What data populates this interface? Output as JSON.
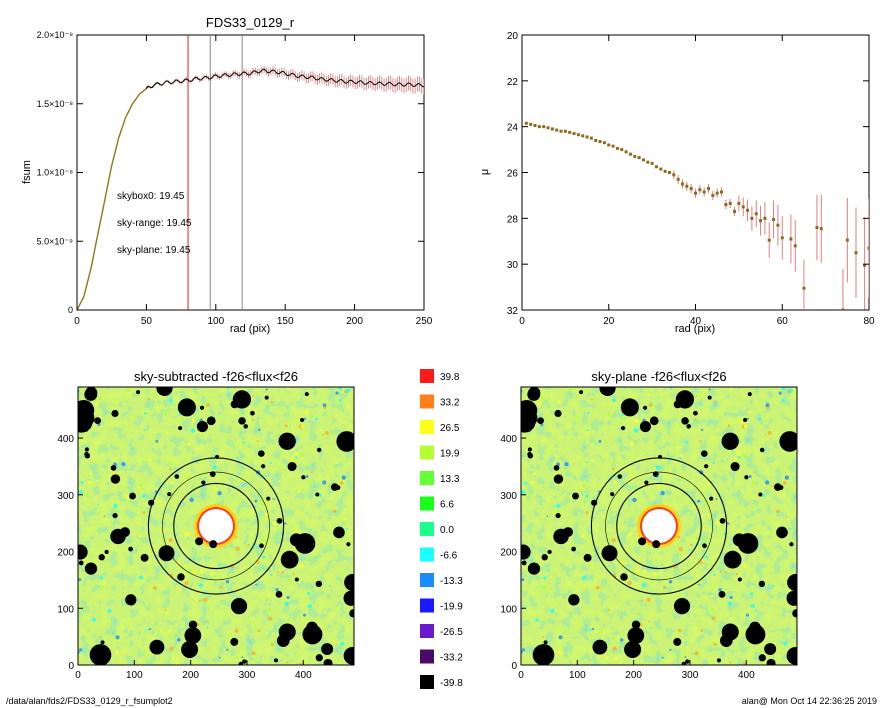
{
  "colors": {
    "growth_black": "#000000",
    "growth_red": "#e02020",
    "growth_green": "#22cc22",
    "growth_olive": "#8a7a1a",
    "errorbar": "#e07070",
    "mag_point": "#8b6a1e"
  },
  "footer": {
    "path": "/data/alan/fds2/FDS33_0129_r_fsumplot2",
    "stamp": "alan@  Mon Oct 14 22:36:25 2019"
  },
  "chart_data": [
    {
      "type": "line",
      "title": "FDS33_0129_r",
      "xlabel": "rad (pix)",
      "ylabel": "fsum",
      "xlim": [
        0,
        250
      ],
      "ylim": [
        0,
        2e-08
      ],
      "xticks": [
        "0",
        "50",
        "100",
        "150",
        "200",
        "250"
      ],
      "yticks": [
        "0",
        "5.0×10⁻⁹",
        "1.0×10⁻⁸",
        "1.5×10⁻⁸",
        "2.0×10⁻⁸"
      ],
      "vlines": [
        {
          "x": 80,
          "color": "#e02020"
        },
        {
          "x": 96,
          "color": "#888888"
        },
        {
          "x": 119,
          "color": "#888888"
        }
      ],
      "annotations": [
        {
          "label": "skybox0:",
          "value": "19.45",
          "color": "#000000"
        },
        {
          "label": "sky-range:",
          "value": "19.45",
          "color": "#e02020"
        },
        {
          "label": "sky-plane:",
          "value": "19.45",
          "color": "#22cc22"
        }
      ],
      "series_curve": {
        "x": [
          0,
          5,
          10,
          15,
          20,
          25,
          30,
          35,
          40,
          45,
          50,
          55,
          60,
          65,
          70,
          75,
          80,
          85,
          90,
          95,
          100,
          105,
          110,
          115,
          120,
          125,
          130,
          135,
          140,
          145,
          150,
          155,
          160,
          165,
          170,
          175,
          180,
          185,
          190,
          195,
          200,
          205,
          210,
          215,
          220,
          225,
          230,
          235,
          240,
          245,
          250
        ],
        "y": [
          0,
          1e-09,
          3e-09,
          5.5e-09,
          8e-09,
          1.05e-08,
          1.25e-08,
          1.4e-08,
          1.5e-08,
          1.57e-08,
          1.61e-08,
          1.635e-08,
          1.645e-08,
          1.655e-08,
          1.66e-08,
          1.665e-08,
          1.67e-08,
          1.68e-08,
          1.685e-08,
          1.69e-08,
          1.7e-08,
          1.705e-08,
          1.71e-08,
          1.715e-08,
          1.72e-08,
          1.72e-08,
          1.735e-08,
          1.74e-08,
          1.735e-08,
          1.73e-08,
          1.72e-08,
          1.71e-08,
          1.7e-08,
          1.695e-08,
          1.69e-08,
          1.68e-08,
          1.675e-08,
          1.67e-08,
          1.665e-08,
          1.66e-08,
          1.66e-08,
          1.655e-08,
          1.65e-08,
          1.65e-08,
          1.645e-08,
          1.645e-08,
          1.64e-08,
          1.64e-08,
          1.64e-08,
          1.635e-08,
          1.635e-08
        ]
      }
    },
    {
      "type": "scatter",
      "xlabel": "rad (pix)",
      "ylabel": "μ",
      "xlim": [
        0,
        80
      ],
      "ylim": [
        32,
        20
      ],
      "xticks": [
        "0",
        "20",
        "40",
        "60",
        "80"
      ],
      "yticks": [
        "20",
        "22",
        "24",
        "26",
        "28",
        "30",
        "32"
      ],
      "points": [
        [
          1,
          23.85
        ],
        [
          2,
          23.9
        ],
        [
          3,
          23.95
        ],
        [
          4,
          24.0
        ],
        [
          5,
          24.0
        ],
        [
          6,
          24.05
        ],
        [
          7,
          24.1
        ],
        [
          8,
          24.15
        ],
        [
          9,
          24.2
        ],
        [
          10,
          24.2
        ],
        [
          11,
          24.25
        ],
        [
          12,
          24.3
        ],
        [
          13,
          24.35
        ],
        [
          14,
          24.4
        ],
        [
          15,
          24.45
        ],
        [
          16,
          24.5
        ],
        [
          17,
          24.6
        ],
        [
          18,
          24.65
        ],
        [
          19,
          24.7
        ],
        [
          20,
          24.8
        ],
        [
          21,
          24.85
        ],
        [
          22,
          24.95
        ],
        [
          23,
          25.0
        ],
        [
          24,
          25.1
        ],
        [
          25,
          25.2
        ],
        [
          26,
          25.3
        ],
        [
          27,
          25.35
        ],
        [
          28,
          25.45
        ],
        [
          29,
          25.55
        ],
        [
          30,
          25.6
        ],
        [
          31,
          25.75
        ],
        [
          32,
          25.85
        ],
        [
          33,
          25.95
        ],
        [
          34,
          26.0
        ],
        [
          35,
          26.1
        ],
        [
          36,
          26.3
        ],
        [
          37,
          26.5
        ],
        [
          38,
          26.6
        ],
        [
          39,
          26.7
        ],
        [
          40,
          26.9
        ],
        [
          41,
          26.75
        ],
        [
          42,
          26.85
        ],
        [
          43,
          26.7
        ],
        [
          44,
          27.0
        ],
        [
          45,
          26.9
        ],
        [
          46,
          26.85
        ],
        [
          47,
          27.4
        ],
        [
          48,
          27.35
        ],
        [
          49,
          27.7
        ],
        [
          50,
          27.35
        ],
        [
          51,
          27.5
        ],
        [
          52,
          27.65
        ],
        [
          53,
          28.0
        ],
        [
          54,
          27.8
        ],
        [
          55,
          28.1
        ],
        [
          56,
          28.0
        ],
        [
          57,
          28.95
        ],
        [
          58,
          28.05
        ],
        [
          59,
          28.3
        ],
        [
          60,
          28.85
        ],
        [
          62,
          28.9
        ],
        [
          63,
          29.2
        ],
        [
          65,
          31.05
        ],
        [
          68,
          28.4
        ],
        [
          69,
          28.45
        ],
        [
          74,
          32.0
        ],
        [
          75,
          28.95
        ],
        [
          77,
          29.5
        ],
        [
          79,
          30.05
        ],
        [
          80,
          29.3
        ]
      ]
    },
    {
      "type": "heatmap",
      "title": "sky-subtracted -f26<flux<f26",
      "xlim": [
        0,
        490
      ],
      "ylim": [
        0,
        490
      ],
      "xticks": [
        "0",
        "100",
        "200",
        "300",
        "400"
      ],
      "yticks": [
        "0",
        "100",
        "200",
        "300",
        "400"
      ]
    },
    {
      "type": "heatmap",
      "title": "sky-plane -f26<flux<f26",
      "xlim": [
        0,
        490
      ],
      "ylim": [
        0,
        490
      ],
      "xticks": [
        "0",
        "100",
        "200",
        "300",
        "400"
      ],
      "yticks": [
        "0",
        "100",
        "200",
        "300",
        "400"
      ]
    },
    {
      "type": "colorbar",
      "levels": [
        "39.8",
        "33.2",
        "26.5",
        "19.9",
        "13.3",
        "6.6",
        "0.0",
        "-6.6",
        "-13.3",
        "-19.9",
        "-26.5",
        "-33.2",
        "-39.8"
      ],
      "colors": [
        "#ff1a1a",
        "#ff7f1a",
        "#ffff1a",
        "#b3ff33",
        "#66ff33",
        "#1aff1a",
        "#1aff8c",
        "#1affff",
        "#1a8cff",
        "#1a1aff",
        "#6a1acc",
        "#4a0a6a",
        "#000000"
      ]
    }
  ]
}
